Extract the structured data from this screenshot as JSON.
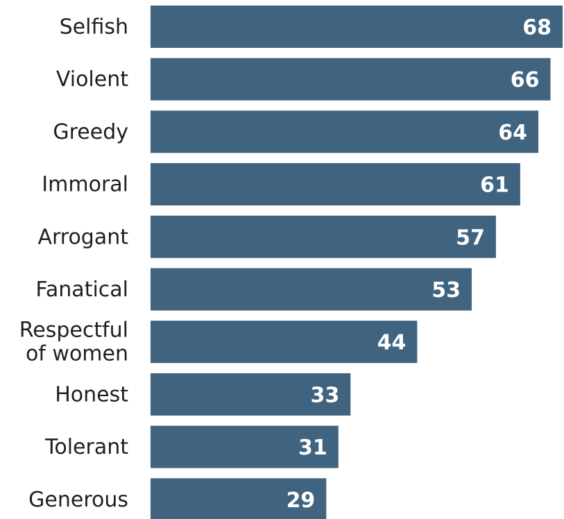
{
  "chart_data": {
    "type": "bar",
    "orientation": "horizontal",
    "categories": [
      [
        "Selfish"
      ],
      [
        "Violent"
      ],
      [
        "Greedy"
      ],
      [
        "Immoral"
      ],
      [
        "Arrogant"
      ],
      [
        "Fanatical"
      ],
      [
        "Respectful",
        "of women"
      ],
      [
        "Honest"
      ],
      [
        "Tolerant"
      ],
      [
        "Generous"
      ]
    ],
    "values": [
      68,
      66,
      64,
      61,
      57,
      53,
      44,
      33,
      31,
      29
    ],
    "value_labels": [
      "68",
      "66",
      "64",
      "61",
      "57",
      "53",
      "44",
      "33",
      "31",
      "29"
    ],
    "title": "",
    "xlabel": "",
    "ylabel": "",
    "xlim": [
      0,
      68
    ],
    "grid": false,
    "legend": "none",
    "bar_color": "#40637f"
  }
}
